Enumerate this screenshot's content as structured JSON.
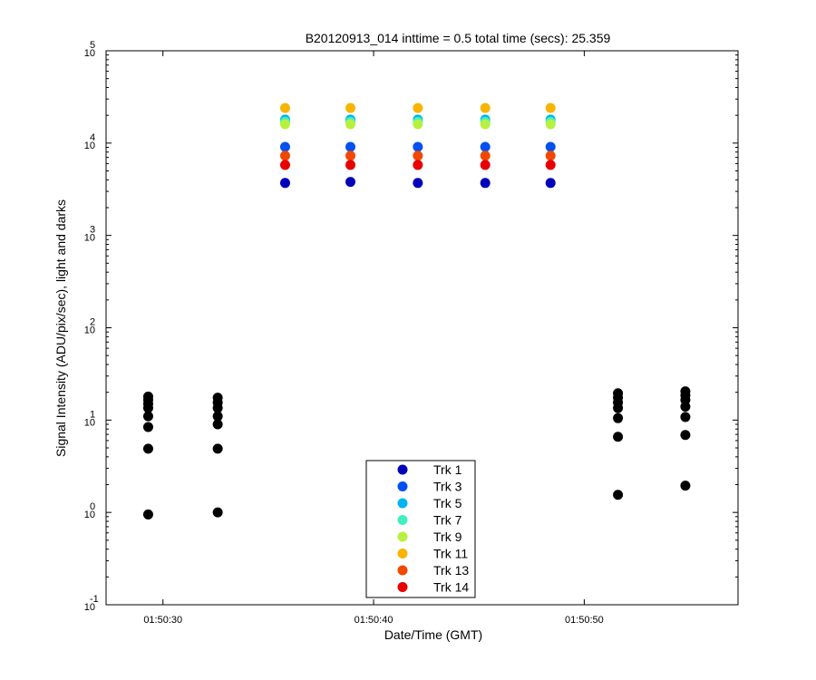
{
  "chart_data": {
    "type": "scatter",
    "title": "B20120913_014 inttime = 0.5 total time (secs): 25.359",
    "xlabel": "Date/Time (GMT)",
    "ylabel": "Signal Intensity (ADU/pix/sec), light and darks",
    "yscale": "log",
    "ylim": [
      0.1,
      100000
    ],
    "xlim": [
      "01:50:27.3",
      "01:50:57.3"
    ],
    "x_ticks": [
      "01:50:30",
      "01:50:40",
      "01:50:50"
    ],
    "y_ticks": [
      {
        "base": "10",
        "exp": "-1"
      },
      {
        "base": "10",
        "exp": "0"
      },
      {
        "base": "10",
        "exp": "1"
      },
      {
        "base": "10",
        "exp": "2"
      },
      {
        "base": "10",
        "exp": "3"
      },
      {
        "base": "10",
        "exp": "4"
      },
      {
        "base": "10",
        "exp": "5"
      }
    ],
    "grid": false,
    "legend_position": "bottom-center",
    "dark_series": {
      "color": "#000000",
      "points": [
        {
          "x": "01:50:29.3",
          "y": [
            0.95,
            4.9,
            8.4,
            11,
            13.5,
            15,
            16.5,
            18
          ]
        },
        {
          "x": "01:50:32.6",
          "y": [
            1.0,
            4.9,
            9,
            11,
            13.5,
            15.5,
            17.5
          ]
        },
        {
          "x": "01:50:51.6",
          "y": [
            1.55,
            6.6,
            10.5,
            13.5,
            15.5,
            17.5,
            19.5
          ]
        },
        {
          "x": "01:50:54.8",
          "y": [
            1.95,
            6.9,
            10.8,
            14,
            16.5,
            18.5,
            20.5
          ]
        }
      ]
    },
    "light_x": [
      "01:50:35.8",
      "01:50:38.9",
      "01:50:42.1",
      "01:50:45.3",
      "01:50:48.4"
    ],
    "series": [
      {
        "name": "Trk 1",
        "color": "#0000b8",
        "values": [
          3700,
          3800,
          3700,
          3700,
          3700
        ]
      },
      {
        "name": "Trk 3",
        "color": "#0050f0",
        "values": [
          9100,
          9100,
          9100,
          9100,
          9100
        ]
      },
      {
        "name": "Trk 5",
        "color": "#00b4f0",
        "values": [
          18000,
          18000,
          18000,
          18000,
          18000
        ]
      },
      {
        "name": "Trk 7",
        "color": "#40f0c0",
        "values": [
          17000,
          17000,
          17000,
          17000,
          17000
        ]
      },
      {
        "name": "Trk 9",
        "color": "#b8f040",
        "values": [
          16000,
          16000,
          16000,
          16000,
          16000
        ]
      },
      {
        "name": "Trk 11",
        "color": "#f8b400",
        "values": [
          24000,
          24000,
          24000,
          24000,
          24000
        ]
      },
      {
        "name": "Trk 13",
        "color": "#f04800",
        "values": [
          7300,
          7300,
          7300,
          7300,
          7300
        ]
      },
      {
        "name": "Trk 14",
        "color": "#e80000",
        "values": [
          5800,
          5800,
          5800,
          5800,
          5800
        ]
      }
    ]
  }
}
